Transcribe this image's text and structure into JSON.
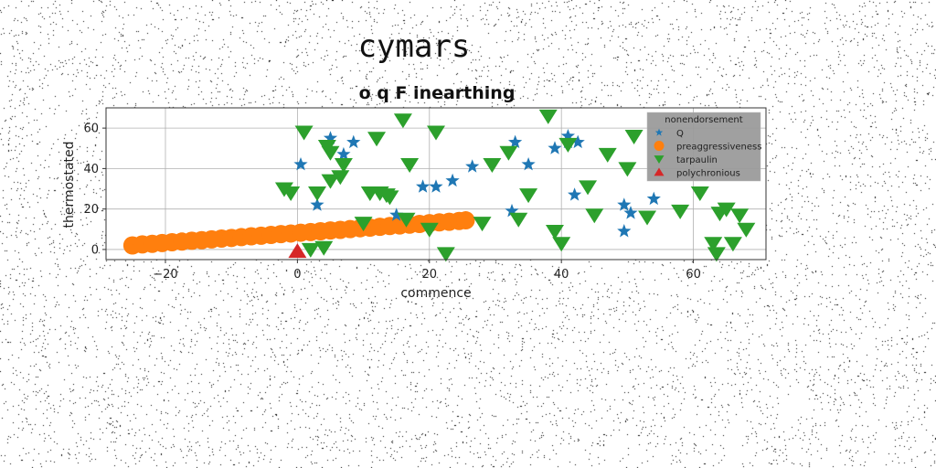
{
  "figure_title": "cymars",
  "chart_data": {
    "type": "scatter",
    "title": "o q F inearthing",
    "xlabel": "commence",
    "ylabel": "thermostated",
    "xlim": [
      -29,
      71
    ],
    "ylim": [
      -5,
      70
    ],
    "xticks": [
      -20,
      0,
      20,
      40,
      60
    ],
    "yticks": [
      0,
      20,
      40,
      60
    ],
    "grid": true,
    "legend": {
      "title": "nonendorsement",
      "placement": "top-right"
    },
    "series": [
      {
        "name": "Q",
        "marker": "star",
        "color": "#1f77b4",
        "points": [
          [
            0.5,
            42
          ],
          [
            3,
            22
          ],
          [
            5,
            55
          ],
          [
            7,
            47
          ],
          [
            8.5,
            53
          ],
          [
            15,
            17
          ],
          [
            19,
            31
          ],
          [
            21,
            31
          ],
          [
            23.5,
            34
          ],
          [
            26.5,
            41
          ],
          [
            33,
            53
          ],
          [
            32.5,
            19
          ],
          [
            35,
            42
          ],
          [
            39,
            50
          ],
          [
            41,
            56
          ],
          [
            41,
            53
          ],
          [
            42.5,
            53
          ],
          [
            42,
            27
          ],
          [
            49.5,
            22
          ],
          [
            49.5,
            9
          ],
          [
            50.5,
            18
          ],
          [
            54,
            25
          ]
        ]
      },
      {
        "name": "preaggressiveness",
        "marker": "circle",
        "color": "#ff7f0e",
        "points": [
          [
            -25,
            2
          ],
          [
            -23.5,
            2.5
          ],
          [
            -22,
            2.8
          ],
          [
            -20.5,
            3.2
          ],
          [
            -19,
            3.6
          ],
          [
            -17.5,
            3.9
          ],
          [
            -16,
            4.3
          ],
          [
            -14.5,
            4.6
          ],
          [
            -13,
            5
          ],
          [
            -11.5,
            5.4
          ],
          [
            -10,
            5.7
          ],
          [
            -8.5,
            6.1
          ],
          [
            -7,
            6.5
          ],
          [
            -5.5,
            6.8
          ],
          [
            -4,
            7.2
          ],
          [
            -2.5,
            7.6
          ],
          [
            -1,
            7.9
          ],
          [
            0.5,
            8.3
          ],
          [
            2,
            8.6
          ],
          [
            3.5,
            9
          ],
          [
            5,
            9.4
          ],
          [
            6.5,
            9.7
          ],
          [
            8,
            10.1
          ],
          [
            9.5,
            10.5
          ],
          [
            11,
            10.8
          ],
          [
            12.5,
            11.2
          ],
          [
            14,
            11.6
          ],
          [
            15.5,
            11.9
          ],
          [
            17,
            12.3
          ],
          [
            18.5,
            12.6
          ],
          [
            20,
            13
          ],
          [
            21.5,
            13.4
          ],
          [
            23,
            13.7
          ],
          [
            24.5,
            14.1
          ],
          [
            25.5,
            14.4
          ]
        ]
      },
      {
        "name": "tarpaulin",
        "marker": "triangle-down",
        "color": "#2ca02c",
        "points": [
          [
            -2,
            30
          ],
          [
            -1,
            28
          ],
          [
            1,
            58
          ],
          [
            2,
            0
          ],
          [
            3,
            28
          ],
          [
            4,
            1
          ],
          [
            4.5,
            51
          ],
          [
            5,
            48
          ],
          [
            5,
            34
          ],
          [
            6.5,
            36
          ],
          [
            7,
            42
          ],
          [
            10,
            13
          ],
          [
            11,
            28
          ],
          [
            12,
            55
          ],
          [
            12.5,
            28
          ],
          [
            13.5,
            27
          ],
          [
            14,
            26
          ],
          [
            16,
            64
          ],
          [
            16.5,
            15
          ],
          [
            17,
            42
          ],
          [
            20,
            10
          ],
          [
            21,
            58
          ],
          [
            22.5,
            -2
          ],
          [
            28,
            13
          ],
          [
            29.5,
            42
          ],
          [
            32,
            48
          ],
          [
            33.5,
            15
          ],
          [
            35,
            27
          ],
          [
            38,
            66
          ],
          [
            39,
            9
          ],
          [
            40,
            3
          ],
          [
            41,
            52
          ],
          [
            44,
            31
          ],
          [
            45,
            17
          ],
          [
            47,
            47
          ],
          [
            50,
            40
          ],
          [
            51,
            56
          ],
          [
            53,
            16
          ],
          [
            58,
            19
          ],
          [
            61,
            28
          ],
          [
            63,
            3
          ],
          [
            63.5,
            -2
          ],
          [
            64,
            18
          ],
          [
            65,
            20
          ],
          [
            66,
            3
          ],
          [
            67,
            17
          ],
          [
            68,
            10
          ]
        ]
      },
      {
        "name": "polychronious",
        "marker": "triangle-up",
        "color": "#d62728",
        "points": [
          [
            0,
            -1
          ]
        ]
      }
    ]
  }
}
